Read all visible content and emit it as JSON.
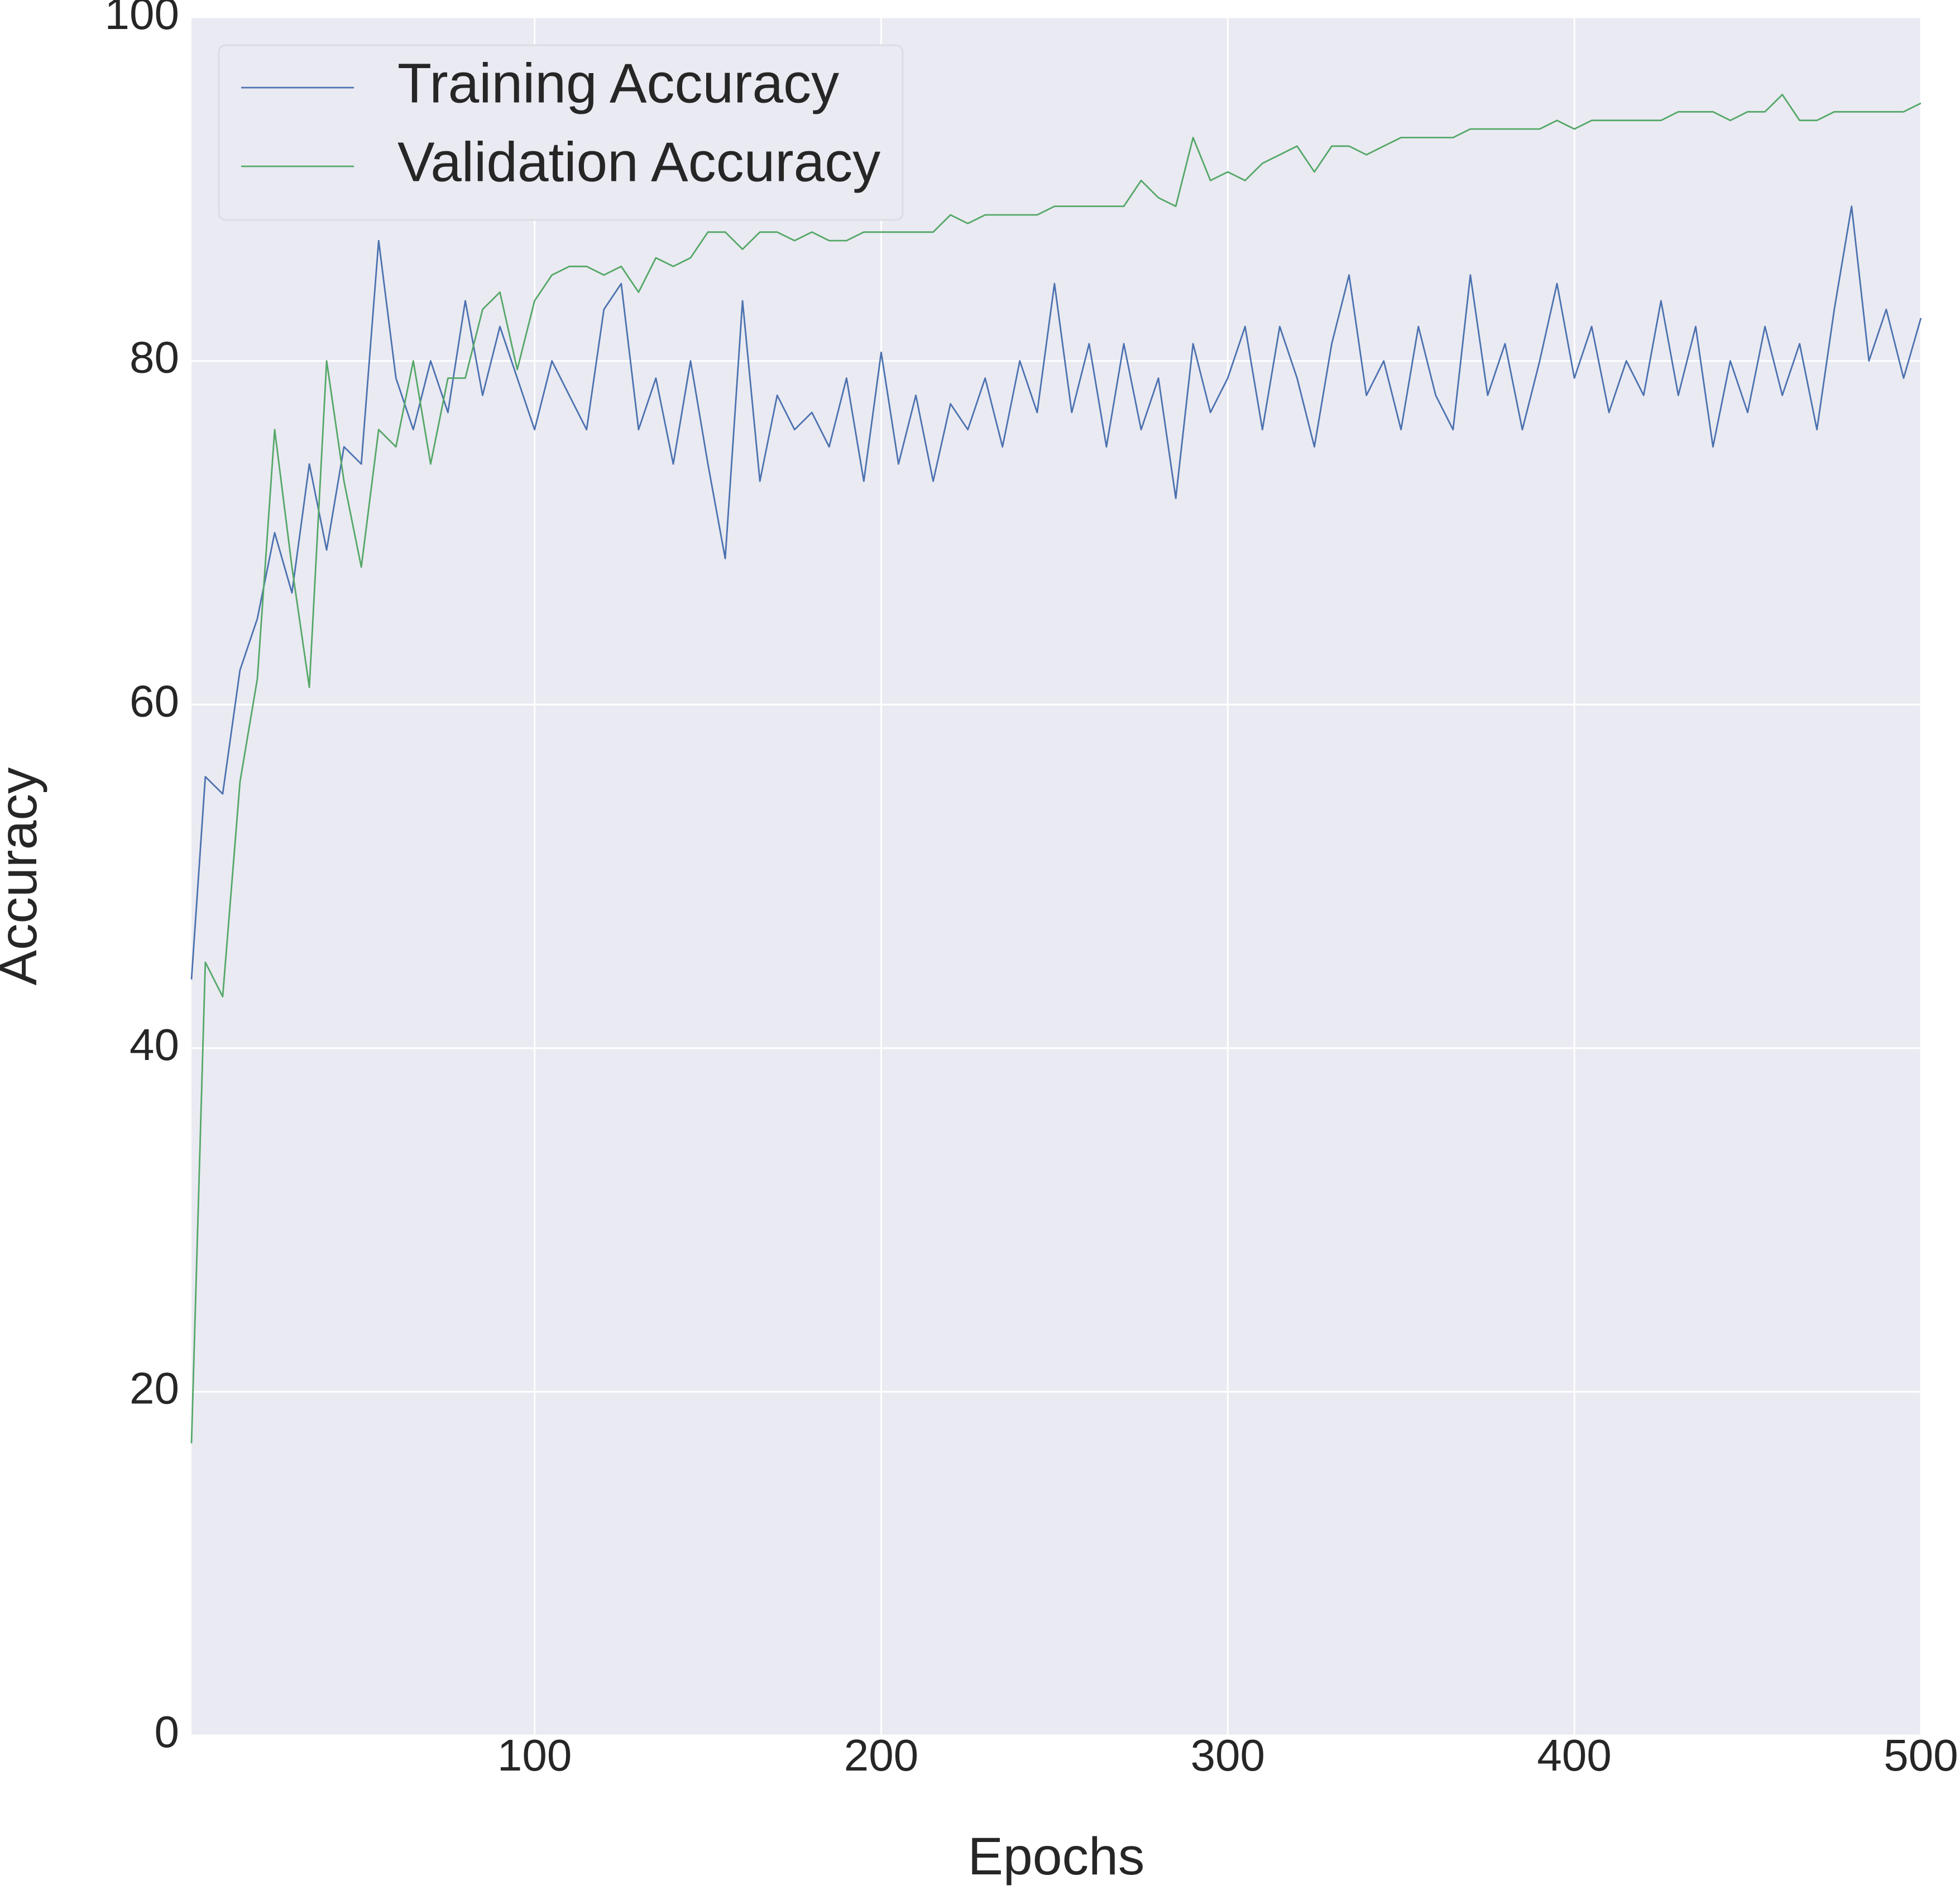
{
  "chart_data": {
    "type": "line",
    "xlabel": "Epochs",
    "ylabel": "Accuracy",
    "x": [
      1,
      5,
      10,
      15,
      20,
      25,
      30,
      35,
      40,
      45,
      50,
      55,
      60,
      65,
      70,
      75,
      80,
      85,
      90,
      95,
      100,
      105,
      110,
      115,
      120,
      125,
      130,
      135,
      140,
      145,
      150,
      155,
      160,
      165,
      170,
      175,
      180,
      185,
      190,
      195,
      200,
      205,
      210,
      215,
      220,
      225,
      230,
      235,
      240,
      245,
      250,
      255,
      260,
      265,
      270,
      275,
      280,
      285,
      290,
      295,
      300,
      305,
      310,
      315,
      320,
      325,
      330,
      335,
      340,
      345,
      350,
      355,
      360,
      365,
      370,
      375,
      380,
      385,
      390,
      395,
      400,
      405,
      410,
      415,
      420,
      425,
      430,
      435,
      440,
      445,
      450,
      455,
      460,
      465,
      470,
      475,
      480,
      485,
      490,
      495,
      500
    ],
    "series": [
      {
        "name": "Training Accuracy",
        "color": "#4c72b0",
        "values": [
          44,
          55.8,
          54.8,
          62,
          65,
          70,
          66.5,
          74,
          69,
          75,
          74,
          87,
          79,
          76,
          80,
          77,
          83.5,
          78,
          82,
          79,
          76,
          80,
          78,
          76,
          83,
          84.5,
          76,
          79,
          74,
          80,
          74,
          68.5,
          83.5,
          73,
          78,
          76,
          77,
          75,
          79,
          73,
          80.5,
          74,
          78,
          73,
          77.5,
          76,
          79,
          75,
          80,
          77,
          84.5,
          77,
          81,
          75,
          81,
          76,
          79,
          72,
          81,
          77,
          79,
          82,
          76,
          82,
          79,
          75,
          81,
          85,
          78,
          80,
          76,
          82,
          78,
          76,
          85,
          78,
          81,
          76,
          80,
          84.5,
          79,
          82,
          77,
          80,
          78,
          83.5,
          78,
          82,
          75,
          80,
          77,
          82,
          78,
          81,
          76,
          83,
          89,
          80,
          83,
          79,
          82.5
        ]
      },
      {
        "name": "Validation Accuracy",
        "color": "#55a868",
        "values": [
          17,
          45,
          43,
          55.5,
          61.5,
          76,
          68,
          61,
          80,
          73,
          68,
          76,
          75,
          80,
          74,
          79,
          79,
          83,
          84,
          79.5,
          83.5,
          85,
          85.5,
          85.5,
          85,
          85.5,
          84,
          86,
          85.5,
          86,
          87.5,
          87.5,
          86.5,
          87.5,
          87.5,
          87,
          87.5,
          87,
          87,
          87.5,
          87.5,
          87.5,
          87.5,
          87.5,
          88.5,
          88,
          88.5,
          88.5,
          88.5,
          88.5,
          89,
          89,
          89,
          89,
          89,
          90.5,
          89.5,
          89,
          93,
          90.5,
          91,
          90.5,
          91.5,
          92,
          92.5,
          91,
          92.5,
          92.5,
          92,
          92.5,
          93,
          93,
          93,
          93,
          93.5,
          93.5,
          93.5,
          93.5,
          93.5,
          94,
          93.5,
          94,
          94,
          94,
          94,
          94,
          94.5,
          94.5,
          94.5,
          94,
          94.5,
          94.5,
          95.5,
          94,
          94,
          94.5,
          94.5,
          94.5,
          94.5,
          94.5,
          95
        ]
      }
    ],
    "xlim": [
      1,
      500
    ],
    "xticks": [
      100,
      200,
      300,
      400,
      500
    ],
    "ylim": [
      0,
      100
    ],
    "yticks": [
      0,
      20,
      40,
      60,
      80,
      100
    ],
    "grid": true,
    "legend": "upper left"
  }
}
